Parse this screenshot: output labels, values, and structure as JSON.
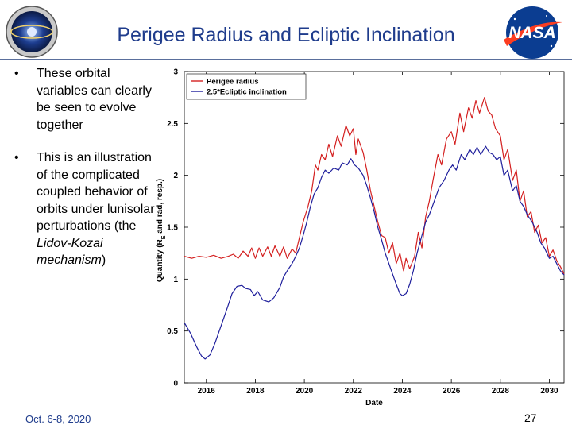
{
  "slide": {
    "title": "Perigee Radius and Ecliptic Inclination",
    "bullets": [
      {
        "text": "These orbital variables can clearly be seen to evolve together"
      },
      {
        "text_before": "This is an illustration of the complicated coupled behavior of orbits under lunisolar perturbations (the ",
        "text_italic": "Lidov-Kozai mechanism",
        "text_after": ")"
      }
    ],
    "bullet_symbol": "•",
    "footer_date": "Oct. 6-8, 2020",
    "page_number": "27",
    "logo_left_icon": "mission-emblem-icon",
    "logo_right_icon": "nasa-meatball-icon"
  },
  "chart_data": {
    "type": "line",
    "xlabel": "Date",
    "ylabel": "Quantity (R_E and rad, resp.)",
    "ylabel_parts": {
      "before": "Quantity (R",
      "sub": "E",
      "after": " and rad, resp.)"
    },
    "xlim": [
      2015.1,
      2030.6
    ],
    "ylim": [
      0,
      3
    ],
    "xticks": [
      2016,
      2018,
      2020,
      2022,
      2024,
      2026,
      2028,
      2030
    ],
    "yticks": [
      0,
      0.5,
      1,
      1.5,
      2,
      2.5,
      3
    ],
    "legend_position": "top-left",
    "grid": false,
    "series": [
      {
        "name": "Perigee radius",
        "color": "#d42020",
        "points": [
          [
            2015.1,
            1.22
          ],
          [
            2015.4,
            1.2
          ],
          [
            2015.7,
            1.22
          ],
          [
            2016.0,
            1.21
          ],
          [
            2016.3,
            1.23
          ],
          [
            2016.6,
            1.2
          ],
          [
            2016.9,
            1.22
          ],
          [
            2017.1,
            1.24
          ],
          [
            2017.3,
            1.2
          ],
          [
            2017.5,
            1.27
          ],
          [
            2017.7,
            1.22
          ],
          [
            2017.85,
            1.3
          ],
          [
            2018.0,
            1.2
          ],
          [
            2018.15,
            1.3
          ],
          [
            2018.3,
            1.22
          ],
          [
            2018.5,
            1.31
          ],
          [
            2018.65,
            1.22
          ],
          [
            2018.8,
            1.32
          ],
          [
            2019.0,
            1.22
          ],
          [
            2019.15,
            1.31
          ],
          [
            2019.3,
            1.2
          ],
          [
            2019.5,
            1.29
          ],
          [
            2019.65,
            1.25
          ],
          [
            2019.8,
            1.4
          ],
          [
            2019.95,
            1.55
          ],
          [
            2020.15,
            1.7
          ],
          [
            2020.3,
            1.85
          ],
          [
            2020.45,
            2.1
          ],
          [
            2020.55,
            2.05
          ],
          [
            2020.7,
            2.2
          ],
          [
            2020.85,
            2.15
          ],
          [
            2021.0,
            2.3
          ],
          [
            2021.15,
            2.18
          ],
          [
            2021.35,
            2.38
          ],
          [
            2021.5,
            2.28
          ],
          [
            2021.7,
            2.48
          ],
          [
            2021.85,
            2.38
          ],
          [
            2022.0,
            2.45
          ],
          [
            2022.1,
            2.2
          ],
          [
            2022.2,
            2.35
          ],
          [
            2022.4,
            2.22
          ],
          [
            2022.55,
            2.05
          ],
          [
            2022.7,
            1.85
          ],
          [
            2022.85,
            1.7
          ],
          [
            2023.0,
            1.55
          ],
          [
            2023.15,
            1.42
          ],
          [
            2023.3,
            1.4
          ],
          [
            2023.45,
            1.25
          ],
          [
            2023.6,
            1.35
          ],
          [
            2023.75,
            1.15
          ],
          [
            2023.9,
            1.25
          ],
          [
            2024.05,
            1.08
          ],
          [
            2024.15,
            1.2
          ],
          [
            2024.3,
            1.1
          ],
          [
            2024.5,
            1.22
          ],
          [
            2024.65,
            1.45
          ],
          [
            2024.8,
            1.3
          ],
          [
            2024.95,
            1.6
          ],
          [
            2025.1,
            1.75
          ],
          [
            2025.25,
            1.95
          ],
          [
            2025.45,
            2.2
          ],
          [
            2025.6,
            2.1
          ],
          [
            2025.8,
            2.35
          ],
          [
            2026.0,
            2.42
          ],
          [
            2026.15,
            2.3
          ],
          [
            2026.35,
            2.6
          ],
          [
            2026.5,
            2.42
          ],
          [
            2026.7,
            2.65
          ],
          [
            2026.85,
            2.55
          ],
          [
            2027.0,
            2.72
          ],
          [
            2027.15,
            2.6
          ],
          [
            2027.35,
            2.75
          ],
          [
            2027.5,
            2.62
          ],
          [
            2027.65,
            2.58
          ],
          [
            2027.8,
            2.45
          ],
          [
            2028.0,
            2.38
          ],
          [
            2028.15,
            2.15
          ],
          [
            2028.3,
            2.25
          ],
          [
            2028.5,
            1.95
          ],
          [
            2028.65,
            2.05
          ],
          [
            2028.8,
            1.75
          ],
          [
            2028.95,
            1.85
          ],
          [
            2029.1,
            1.6
          ],
          [
            2029.25,
            1.65
          ],
          [
            2029.4,
            1.45
          ],
          [
            2029.55,
            1.52
          ],
          [
            2029.7,
            1.35
          ],
          [
            2029.85,
            1.4
          ],
          [
            2030.0,
            1.22
          ],
          [
            2030.15,
            1.28
          ],
          [
            2030.3,
            1.18
          ],
          [
            2030.45,
            1.12
          ],
          [
            2030.6,
            1.05
          ]
        ]
      },
      {
        "name": "2.5*Ecliptic inclination",
        "color": "#1f1f9c",
        "points": [
          [
            2015.1,
            0.58
          ],
          [
            2015.35,
            0.48
          ],
          [
            2015.6,
            0.35
          ],
          [
            2015.8,
            0.26
          ],
          [
            2015.95,
            0.23
          ],
          [
            2016.15,
            0.27
          ],
          [
            2016.35,
            0.38
          ],
          [
            2016.6,
            0.55
          ],
          [
            2016.85,
            0.72
          ],
          [
            2017.05,
            0.86
          ],
          [
            2017.25,
            0.93
          ],
          [
            2017.45,
            0.94
          ],
          [
            2017.6,
            0.91
          ],
          [
            2017.8,
            0.9
          ],
          [
            2017.95,
            0.84
          ],
          [
            2018.1,
            0.88
          ],
          [
            2018.3,
            0.8
          ],
          [
            2018.55,
            0.78
          ],
          [
            2018.75,
            0.82
          ],
          [
            2019.0,
            0.92
          ],
          [
            2019.15,
            1.02
          ],
          [
            2019.3,
            1.08
          ],
          [
            2019.5,
            1.15
          ],
          [
            2019.65,
            1.22
          ],
          [
            2019.8,
            1.3
          ],
          [
            2019.95,
            1.42
          ],
          [
            2020.1,
            1.55
          ],
          [
            2020.25,
            1.7
          ],
          [
            2020.4,
            1.82
          ],
          [
            2020.55,
            1.88
          ],
          [
            2020.7,
            1.98
          ],
          [
            2020.85,
            2.05
          ],
          [
            2021.0,
            2.02
          ],
          [
            2021.2,
            2.07
          ],
          [
            2021.4,
            2.05
          ],
          [
            2021.55,
            2.12
          ],
          [
            2021.75,
            2.1
          ],
          [
            2021.9,
            2.16
          ],
          [
            2022.05,
            2.1
          ],
          [
            2022.2,
            2.07
          ],
          [
            2022.4,
            2.0
          ],
          [
            2022.55,
            1.9
          ],
          [
            2022.7,
            1.78
          ],
          [
            2022.85,
            1.65
          ],
          [
            2023.0,
            1.5
          ],
          [
            2023.15,
            1.38
          ],
          [
            2023.3,
            1.25
          ],
          [
            2023.45,
            1.15
          ],
          [
            2023.6,
            1.05
          ],
          [
            2023.75,
            0.95
          ],
          [
            2023.9,
            0.86
          ],
          [
            2024.0,
            0.84
          ],
          [
            2024.15,
            0.86
          ],
          [
            2024.3,
            0.95
          ],
          [
            2024.45,
            1.08
          ],
          [
            2024.6,
            1.25
          ],
          [
            2024.8,
            1.42
          ],
          [
            2024.95,
            1.55
          ],
          [
            2025.1,
            1.62
          ],
          [
            2025.3,
            1.75
          ],
          [
            2025.5,
            1.88
          ],
          [
            2025.7,
            1.95
          ],
          [
            2025.9,
            2.05
          ],
          [
            2026.05,
            2.1
          ],
          [
            2026.2,
            2.05
          ],
          [
            2026.4,
            2.2
          ],
          [
            2026.55,
            2.15
          ],
          [
            2026.75,
            2.25
          ],
          [
            2026.9,
            2.2
          ],
          [
            2027.05,
            2.27
          ],
          [
            2027.2,
            2.2
          ],
          [
            2027.4,
            2.28
          ],
          [
            2027.55,
            2.22
          ],
          [
            2027.7,
            2.2
          ],
          [
            2027.85,
            2.15
          ],
          [
            2028.0,
            2.18
          ],
          [
            2028.15,
            2.0
          ],
          [
            2028.3,
            2.05
          ],
          [
            2028.5,
            1.85
          ],
          [
            2028.65,
            1.9
          ],
          [
            2028.8,
            1.75
          ],
          [
            2028.95,
            1.7
          ],
          [
            2029.1,
            1.62
          ],
          [
            2029.3,
            1.55
          ],
          [
            2029.5,
            1.45
          ],
          [
            2029.65,
            1.35
          ],
          [
            2029.8,
            1.3
          ],
          [
            2030.0,
            1.2
          ],
          [
            2030.15,
            1.22
          ],
          [
            2030.3,
            1.15
          ],
          [
            2030.45,
            1.08
          ],
          [
            2030.6,
            1.04
          ]
        ]
      }
    ]
  }
}
